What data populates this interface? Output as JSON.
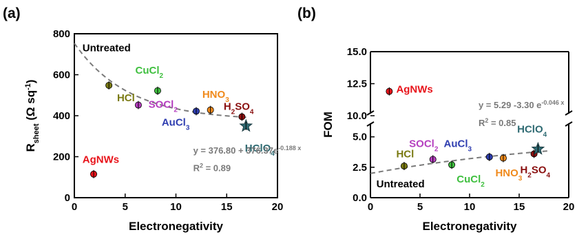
{
  "figure": {
    "panel_a_label": "(a)",
    "panel_b_label": "(b)"
  },
  "chart_data": [
    {
      "type": "scatter",
      "panel": "(a)",
      "xlabel": "Electronegativity",
      "ylabel_main": "R",
      "ylabel_sub": "sheet",
      "ylabel_unit_open": " (Ω sq",
      "ylabel_unit_sup": "-1",
      "ylabel_unit_close": ")",
      "xlim": [
        0,
        20
      ],
      "ylim": [
        0,
        800
      ],
      "xticks": [
        0,
        5,
        10,
        15,
        20
      ],
      "yticks": [
        0,
        200,
        400,
        600,
        800
      ],
      "points": [
        {
          "name": "AgNWs",
          "x": 1.9,
          "y": 115,
          "color": "#e8141b",
          "marker": "circle"
        },
        {
          "name": "HCl",
          "x": 3.4,
          "y": 548,
          "color": "#7a7a12",
          "marker": "circle"
        },
        {
          "name": "SOCl2",
          "x": 6.3,
          "y": 452,
          "color": "#b53fbf",
          "marker": "circle"
        },
        {
          "name": "CuCl2",
          "x": 8.2,
          "y": 522,
          "color": "#3fbf3f",
          "marker": "circle"
        },
        {
          "name": "AuCl3",
          "x": 12.0,
          "y": 422,
          "color": "#2f3eb0",
          "marker": "circle"
        },
        {
          "name": "HNO3",
          "x": 13.4,
          "y": 428,
          "color": "#f08a1c",
          "marker": "circle"
        },
        {
          "name": "H2SO4",
          "x": 16.5,
          "y": 395,
          "color": "#8a1010",
          "marker": "circle"
        },
        {
          "name": "HClO4",
          "x": 16.9,
          "y": 350,
          "color": "#2e6a72",
          "marker": "star"
        }
      ],
      "labels": [
        {
          "key": "AgNWs",
          "parts": [
            {
              "t": "AgNWs"
            }
          ],
          "color": "#e8141b",
          "x": 0.8,
          "y": 170
        },
        {
          "key": "HCl",
          "parts": [
            {
              "t": "HCl"
            }
          ],
          "color": "#7a7a12",
          "x": 4.2,
          "y": 470
        },
        {
          "key": "SOCl2",
          "parts": [
            {
              "t": "SOCl"
            },
            {
              "t": "2",
              "sub": true
            }
          ],
          "color": "#b53fbf",
          "x": 7.3,
          "y": 438
        },
        {
          "key": "CuCl2",
          "parts": [
            {
              "t": "CuCl"
            },
            {
              "t": "2",
              "sub": true
            }
          ],
          "color": "#3fbf3f",
          "x": 6.0,
          "y": 605
        },
        {
          "key": "AuCl3",
          "parts": [
            {
              "t": "AuCl"
            },
            {
              "t": "3",
              "sub": true
            }
          ],
          "color": "#2f3eb0",
          "x": 8.6,
          "y": 352
        },
        {
          "key": "HNO3",
          "parts": [
            {
              "t": "HNO"
            },
            {
              "t": "3",
              "sub": true
            }
          ],
          "color": "#f08a1c",
          "x": 12.6,
          "y": 488
        },
        {
          "key": "H2SO4",
          "parts": [
            {
              "t": "H"
            },
            {
              "t": "2",
              "sub": true
            },
            {
              "t": "SO"
            },
            {
              "t": "4",
              "sub": true
            }
          ],
          "color": "#8a1010",
          "x": 14.7,
          "y": 428
        },
        {
          "key": "HClO4",
          "parts": [
            {
              "t": "HClO"
            },
            {
              "t": "4",
              "sub": true
            }
          ],
          "color": "#2e6a72",
          "x": 16.8,
          "y": 225
        },
        {
          "key": "Untreated",
          "parts": [
            {
              "t": "Untreated"
            }
          ],
          "color": "#000000",
          "x": 0.8,
          "y": 715
        }
      ],
      "fit": {
        "equation_parts": [
          {
            "t": "y = 376.80 + 376.37"
          },
          {
            "t": "e"
          },
          {
            "t": "-0.188 x",
            "sup": true
          }
        ],
        "r2_parts": [
          {
            "t": "R"
          },
          {
            "t": "2",
            "sup": true
          },
          {
            "t": " = 0.89"
          }
        ],
        "a": 376.8,
        "b": 376.37,
        "c": -0.188,
        "x_range": [
          0,
          17
        ],
        "eq_pos": [
          11.7,
          215
        ],
        "r2_pos": [
          11.7,
          130
        ]
      }
    },
    {
      "type": "scatter",
      "panel": "(b)",
      "xlabel": "Electronegativity",
      "ylabel": "FOM",
      "xlim": [
        0,
        20
      ],
      "axis_break": {
        "lower": [
          0,
          6.0
        ],
        "upper": [
          10,
          15.0
        ]
      },
      "xticks": [
        0,
        5,
        10,
        15,
        20
      ],
      "yticks": [
        "0.0",
        "2.5",
        "5.0",
        "10.0",
        "12.5",
        "15.0"
      ],
      "points": [
        {
          "name": "AgNWs",
          "x": 1.9,
          "y": 11.9,
          "color": "#e8141b",
          "marker": "circle"
        },
        {
          "name": "HCl",
          "x": 3.4,
          "y": 2.6,
          "color": "#7a7a12",
          "marker": "circle"
        },
        {
          "name": "SOCl2",
          "x": 6.3,
          "y": 3.15,
          "color": "#b53fbf",
          "marker": "circle"
        },
        {
          "name": "CuCl2",
          "x": 8.2,
          "y": 2.7,
          "color": "#3fbf3f",
          "marker": "circle"
        },
        {
          "name": "AuCl3",
          "x": 12.0,
          "y": 3.35,
          "color": "#2f3eb0",
          "marker": "circle"
        },
        {
          "name": "HNO3",
          "x": 13.4,
          "y": 3.25,
          "color": "#f08a1c",
          "marker": "circle"
        },
        {
          "name": "H2SO4",
          "x": 16.5,
          "y": 3.6,
          "color": "#8a1010",
          "marker": "circle"
        },
        {
          "name": "HClO4",
          "x": 16.9,
          "y": 4.0,
          "color": "#2e6a72",
          "marker": "star"
        }
      ],
      "labels": [
        {
          "key": "AgNWs",
          "parts": [
            {
              "t": "AgNWs"
            }
          ],
          "color": "#e8141b",
          "x": 2.6,
          "y": 11.8
        },
        {
          "key": "HCl",
          "parts": [
            {
              "t": "HCl"
            }
          ],
          "color": "#7a7a12",
          "x": 2.6,
          "y": 3.3
        },
        {
          "key": "SOCl2",
          "parts": [
            {
              "t": "SOCl"
            },
            {
              "t": "2",
              "sub": true
            }
          ],
          "color": "#b53fbf",
          "x": 3.9,
          "y": 4.15
        },
        {
          "key": "AuCl3",
          "parts": [
            {
              "t": "AuCl"
            },
            {
              "t": "3",
              "sub": true
            }
          ],
          "color": "#2f3eb0",
          "x": 7.4,
          "y": 4.15
        },
        {
          "key": "CuCl2",
          "parts": [
            {
              "t": "CuCl"
            },
            {
              "t": "2",
              "sub": true
            }
          ],
          "color": "#3fbf3f",
          "x": 8.7,
          "y": 1.25
        },
        {
          "key": "HNO3",
          "parts": [
            {
              "t": "HNO"
            },
            {
              "t": "3",
              "sub": true
            }
          ],
          "color": "#f08a1c",
          "x": 12.6,
          "y": 1.75
        },
        {
          "key": "H2SO4",
          "parts": [
            {
              "t": "H"
            },
            {
              "t": "2",
              "sub": true
            },
            {
              "t": "SO"
            },
            {
              "t": "4",
              "sub": true
            }
          ],
          "color": "#8a1010",
          "x": 15.1,
          "y": 2.0
        },
        {
          "key": "HClO4",
          "parts": [
            {
              "t": "HClO"
            },
            {
              "t": "4",
              "sub": true
            }
          ],
          "color": "#2e6a72",
          "x": 14.8,
          "y": 5.35
        },
        {
          "key": "Untreated",
          "parts": [
            {
              "t": "Untreated"
            }
          ],
          "color": "#000000",
          "x": 0.6,
          "y": 0.85
        }
      ],
      "fit": {
        "equation_parts": [
          {
            "t": "y = 5.29 -3.30 "
          },
          {
            "t": "e"
          },
          {
            "t": "-0.046 x",
            "sup": true
          }
        ],
        "r2_parts": [
          {
            "t": "R"
          },
          {
            "t": "2",
            "sup": true
          },
          {
            "t": " = 0.85"
          }
        ],
        "a": 5.29,
        "b": -3.3,
        "c": -0.046,
        "x_range": [
          0,
          18
        ],
        "eq_pos": [
          10.9,
          10.6
        ],
        "r2_pos": [
          10.9,
          5.9
        ]
      }
    }
  ]
}
